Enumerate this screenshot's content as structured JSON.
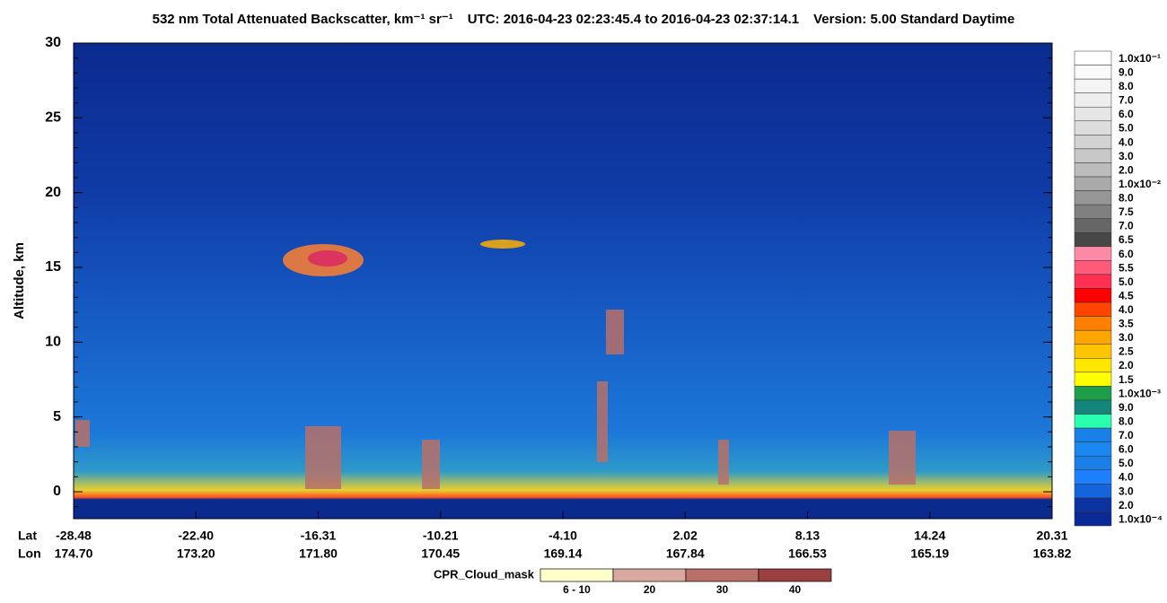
{
  "chart_data": {
    "type": "heatmap",
    "title": "532 nm Total Attenuated Backscatter, km⁻¹ sr⁻¹",
    "time_range": "UTC:  2016-04-23 02:23:45.4  to  2016-04-23 02:37:14.1",
    "version": "Version: 5.00  Standard  Daytime",
    "y_label": "Altitude, km",
    "ylim": [
      -1.8,
      30
    ],
    "yticks": [
      0,
      5,
      10,
      15,
      20,
      25,
      30
    ],
    "x_row_labels": [
      "Lat",
      "Lon"
    ],
    "lat": [
      "-28.48",
      "-22.40",
      "-16.31",
      "-10.21",
      "-4.10",
      "2.02",
      "8.13",
      "14.24",
      "20.31"
    ],
    "lon": [
      "174.70",
      "173.20",
      "171.80",
      "170.45",
      "169.14",
      "167.84",
      "166.53",
      "165.19",
      "163.82"
    ],
    "colorbar": {
      "labels": [
        "1.0x10⁻¹",
        "9.0",
        "8.0",
        "7.0",
        "6.0",
        "5.0",
        "4.0",
        "3.0",
        "2.0",
        "1.0x10⁻²",
        "8.0",
        "7.5",
        "7.0",
        "6.5",
        "6.0",
        "5.5",
        "5.0",
        "4.5",
        "4.0",
        "3.5",
        "3.0",
        "2.5",
        "2.0",
        "1.5",
        "1.0x10⁻³",
        "9.0",
        "8.0",
        "7.0",
        "6.0",
        "5.0",
        "4.0",
        "3.0",
        "2.0",
        "1.0x10⁻⁴"
      ],
      "colors": [
        "#ffffff",
        "#fafafa",
        "#f4f4f4",
        "#eeeeee",
        "#e6e6e6",
        "#dddddd",
        "#d2d2d2",
        "#c8c8c8",
        "#bcbcbc",
        "#aaaaaa",
        "#969696",
        "#808080",
        "#666666",
        "#474747",
        "#ff8aa8",
        "#ff5a7a",
        "#ff3050",
        "#ff0000",
        "#ff4500",
        "#ff7f00",
        "#ffa500",
        "#ffc400",
        "#ffe800",
        "#ffff00",
        "#1e9e4a",
        "#14857a",
        "#2affb0",
        "#1a7fe6",
        "#1a88f0",
        "#1a7fe6",
        "#1e80ff",
        "#1464dc",
        "#0a32a0",
        "#0a2896"
      ]
    },
    "cpr_legend": {
      "title": "CPR_Cloud_mask",
      "labels": [
        "6 - 10",
        "20",
        "30",
        "40"
      ],
      "colors": [
        "#ffffcc",
        "#d8a8a0",
        "#b87068",
        "#9a4040"
      ]
    }
  }
}
